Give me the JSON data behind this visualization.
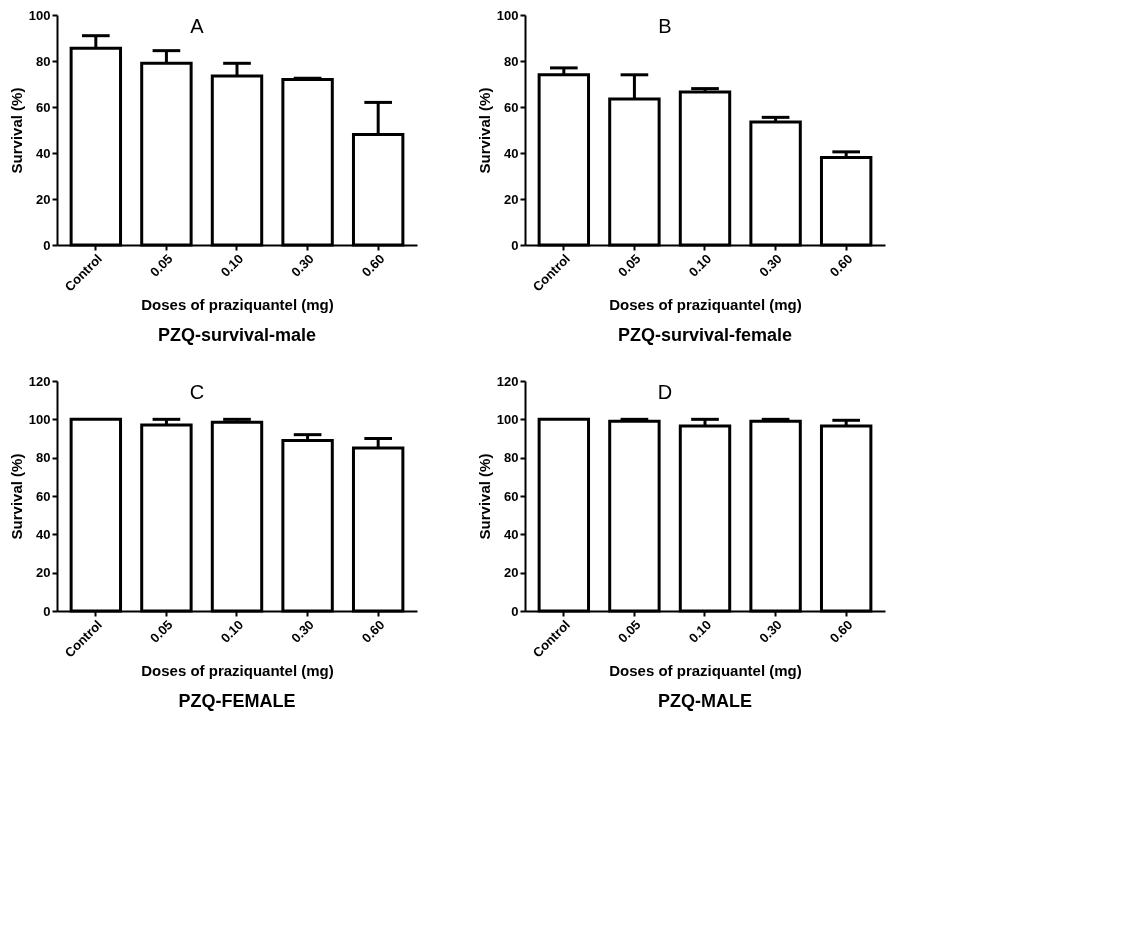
{
  "chart_data": [
    {
      "type": "bar",
      "title": "PZQ-survival-male",
      "annotations": [
        "A"
      ],
      "xlabel": "Doses of praziquantel (mg)",
      "ylabel": "Survival (%)",
      "categories": [
        "Control",
        "0.05",
        "0.10",
        "0.30",
        "0.60"
      ],
      "values": [
        85.5,
        79,
        73.5,
        72,
        48
      ],
      "errors": [
        [
          85.5,
          91
        ],
        [
          79,
          84.5
        ],
        [
          73.5,
          79
        ],
        [
          72,
          72.5
        ],
        [
          48,
          62
        ]
      ],
      "ylim": [
        0,
        100
      ],
      "yticks": [
        0,
        20,
        40,
        60,
        80,
        100
      ]
    },
    {
      "type": "bar",
      "title": "PZQ-survival-female",
      "annotations": [
        "B"
      ],
      "xlabel": "Doses of praziquantel (mg)",
      "ylabel": "Survival (%)",
      "categories": [
        "Control",
        "0.05",
        "0.10",
        "0.30",
        "0.60"
      ],
      "values": [
        74,
        63.5,
        66.5,
        53.5,
        38
      ],
      "errors": [
        [
          74,
          77
        ],
        [
          63.5,
          74
        ],
        [
          66.5,
          68
        ],
        [
          53.5,
          55.5
        ],
        [
          38,
          40.5
        ]
      ],
      "ylim": [
        0,
        100
      ],
      "yticks": [
        0,
        20,
        40,
        60,
        80,
        100
      ]
    },
    {
      "type": "bar",
      "title": "PZQ-FEMALE",
      "annotations": [
        "C"
      ],
      "xlabel": "Doses of praziquantel (mg)",
      "ylabel": "Survival (%)",
      "categories": [
        "Control",
        "0.05",
        "0.10",
        "0.30",
        "0.60"
      ],
      "values": [
        100,
        97,
        98.5,
        89,
        85
      ],
      "errors": [
        null,
        [
          97,
          100
        ],
        [
          98.5,
          100
        ],
        [
          89,
          92
        ],
        [
          85,
          90
        ]
      ],
      "ylim": [
        0,
        120
      ],
      "yticks": [
        0,
        20,
        40,
        60,
        80,
        100,
        120
      ]
    },
    {
      "type": "bar",
      "title": "PZQ-MALE",
      "annotations": [
        "D"
      ],
      "xlabel": "Doses of praziquantel (mg)",
      "ylabel": "Survival (%)",
      "categories": [
        "Control",
        "0.05",
        "0.10",
        "0.30",
        "0.60"
      ],
      "values": [
        100,
        99,
        96.5,
        99,
        96.5
      ],
      "errors": [
        null,
        [
          99,
          100
        ],
        [
          96.5,
          100
        ],
        [
          99,
          100
        ],
        [
          96.5,
          99.5
        ]
      ],
      "ylim": [
        0,
        120
      ],
      "yticks": [
        0,
        20,
        40,
        60,
        80,
        100,
        120
      ]
    }
  ]
}
